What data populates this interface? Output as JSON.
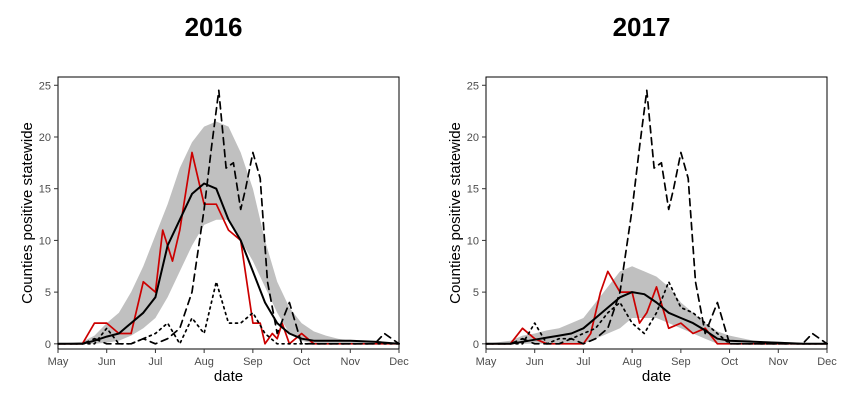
{
  "chart_data": [
    {
      "type": "line",
      "title": "2016",
      "xlabel": "date",
      "ylabel": "Counties positive statewide",
      "x_ticks": [
        "May",
        "Jun",
        "Jul",
        "Aug",
        "Sep",
        "Oct",
        "Nov",
        "Dec"
      ],
      "y_ticks": [
        "0",
        "5",
        "10",
        "15",
        "20",
        "25"
      ],
      "xlim": [
        0,
        7
      ],
      "ylim": [
        -0.5,
        25.8
      ],
      "grid": false,
      "band": {
        "color": "#c0c0c0",
        "x": [
          0,
          0.5,
          0.75,
          1,
          1.25,
          1.5,
          1.75,
          2,
          2.25,
          2.5,
          2.75,
          3,
          3.25,
          3.5,
          3.75,
          4,
          4.25,
          4.5,
          4.75,
          5,
          5.25,
          5.5,
          5.75,
          6,
          6.5,
          7
        ],
        "lower": [
          0,
          0,
          0,
          0.1,
          0.3,
          0.8,
          1.5,
          2.5,
          4.5,
          7,
          9.5,
          11.5,
          12,
          12,
          10,
          8,
          5.5,
          3,
          1,
          0.3,
          0,
          0,
          0,
          0,
          0,
          0
        ],
        "upper": [
          0,
          0.2,
          0.8,
          2,
          3,
          5,
          7.5,
          10.5,
          13.5,
          17,
          19.5,
          21,
          21.5,
          21,
          18.5,
          15,
          10,
          6,
          3.5,
          2,
          1.2,
          0.8,
          0.5,
          0.3,
          0.2,
          0
        ]
      },
      "series": [
        {
          "color": "#cc0000",
          "dash": "solid",
          "x": [
            0,
            0.25,
            0.5,
            0.75,
            1,
            1.25,
            1.5,
            1.75,
            2,
            2.15,
            2.35,
            2.5,
            2.75,
            3,
            3.15,
            3.25,
            3.5,
            3.75,
            4,
            4.15,
            4.25,
            4.4,
            4.5,
            4.6,
            4.75,
            5,
            5.25,
            5.5,
            6,
            6.5,
            7
          ],
          "y": [
            0,
            0,
            0,
            2,
            2,
            1,
            1,
            6,
            5,
            11,
            8,
            11,
            18.5,
            13.5,
            13.5,
            13.5,
            11,
            10,
            2,
            2,
            0,
            1,
            0.5,
            2,
            0,
            1,
            0,
            0,
            0,
            0,
            0
          ]
        },
        {
          "color": "#000000",
          "dash": "solid",
          "width": 2,
          "x": [
            0,
            0.5,
            0.75,
            1,
            1.25,
            1.5,
            1.75,
            2,
            2.25,
            2.5,
            2.75,
            3,
            3.25,
            3.5,
            3.75,
            4,
            4.25,
            4.5,
            4.75,
            5,
            5.25,
            5.5,
            6,
            6.5,
            7
          ],
          "y": [
            0,
            0,
            0.3,
            0.7,
            1,
            2,
            3,
            4.5,
            9.5,
            12,
            14.5,
            15.5,
            15,
            12,
            10,
            7,
            4,
            2,
            1,
            0.5,
            0.3,
            0.3,
            0.3,
            0.2,
            0
          ]
        },
        {
          "color": "#000000",
          "dash": "7,5",
          "x": [
            0,
            0.5,
            0.75,
            1,
            1.25,
            1.5,
            1.75,
            2,
            2.25,
            2.5,
            2.75,
            3,
            3.15,
            3.3,
            3.45,
            3.6,
            3.75,
            3.85,
            4,
            4.15,
            4.3,
            4.5,
            4.75,
            5,
            5.5,
            6,
            6.5,
            6.7,
            7
          ],
          "y": [
            0,
            0,
            0.5,
            0,
            0,
            0,
            0.5,
            0,
            0.5,
            1.5,
            5,
            13,
            19,
            24.5,
            17,
            17.5,
            13,
            15,
            18.5,
            16,
            6,
            1,
            4,
            0,
            0,
            0,
            0,
            1,
            0
          ]
        },
        {
          "color": "#000000",
          "dash": "2,4",
          "x": [
            0,
            0.5,
            0.75,
            1,
            1.25,
            1.5,
            1.75,
            2,
            2.25,
            2.5,
            2.75,
            3,
            3.25,
            3.5,
            3.75,
            4,
            4.25,
            4.5,
            4.75,
            5,
            5.5,
            6,
            6.5,
            7
          ],
          "y": [
            0,
            0,
            0,
            1.5,
            0,
            0,
            0.5,
            1,
            2,
            0,
            2.5,
            1,
            6,
            2,
            2,
            3,
            1,
            0,
            0,
            0,
            0,
            0,
            0,
            0
          ]
        }
      ]
    },
    {
      "type": "line",
      "title": "2017",
      "xlabel": "date",
      "ylabel": "Counties positive statewide",
      "x_ticks": [
        "May",
        "Jun",
        "Jul",
        "Aug",
        "Sep",
        "Oct",
        "Nov",
        "Dec"
      ],
      "y_ticks": [
        "0",
        "5",
        "10",
        "15",
        "20",
        "25"
      ],
      "xlim": [
        0,
        7
      ],
      "ylim": [
        -0.5,
        25.8
      ],
      "grid": false,
      "band": {
        "color": "#c0c0c0",
        "x": [
          0,
          0.5,
          0.75,
          1,
          1.25,
          1.5,
          1.75,
          2,
          2.25,
          2.5,
          2.75,
          3,
          3.25,
          3.5,
          3.75,
          4,
          4.25,
          4.5,
          4.75,
          5,
          5.5,
          6,
          6.5,
          7
        ],
        "lower": [
          0,
          0,
          0,
          0,
          0,
          0,
          0,
          0,
          0.5,
          1,
          1.5,
          2.5,
          2.5,
          2.5,
          2,
          1.5,
          1,
          0.5,
          0,
          0,
          0,
          0,
          0,
          0
        ],
        "upper": [
          0,
          0.3,
          0.8,
          1,
          1.3,
          1.5,
          2,
          2.5,
          4,
          5.5,
          7,
          7.5,
          7,
          6.5,
          5.5,
          4,
          3,
          2,
          1.2,
          0.8,
          0.3,
          0.2,
          0.1,
          0
        ]
      },
      "series": [
        {
          "color": "#cc0000",
          "dash": "solid",
          "x": [
            0,
            0.25,
            0.5,
            0.75,
            1,
            1.25,
            1.5,
            1.75,
            2,
            2.15,
            2.35,
            2.5,
            2.75,
            3,
            3.15,
            3.3,
            3.5,
            3.75,
            4,
            4.25,
            4.5,
            4.75,
            5,
            5.5,
            6,
            6.5,
            7
          ],
          "y": [
            0,
            0,
            0,
            1.5,
            0.5,
            0,
            0,
            0,
            0,
            1,
            5,
            7,
            5,
            5,
            2,
            3,
            5.5,
            1.5,
            2,
            1,
            1.5,
            0,
            0,
            0,
            0,
            0,
            0
          ]
        },
        {
          "color": "#000000",
          "dash": "solid",
          "width": 2,
          "x": [
            0,
            0.5,
            0.75,
            1,
            1.25,
            1.5,
            1.75,
            2,
            2.25,
            2.5,
            2.75,
            3,
            3.25,
            3.5,
            3.75,
            4,
            4.25,
            4.5,
            4.75,
            5,
            5.5,
            6,
            6.5,
            7
          ],
          "y": [
            0,
            0,
            0.2,
            0.4,
            0.6,
            0.8,
            1,
            1.5,
            2.5,
            3.5,
            4.5,
            5,
            4.8,
            4,
            3,
            2.5,
            2,
            1.3,
            0.5,
            0.3,
            0.2,
            0.1,
            0,
            0
          ]
        },
        {
          "color": "#000000",
          "dash": "7,5",
          "x": [
            0,
            0.5,
            0.75,
            1,
            1.25,
            1.5,
            1.75,
            2,
            2.25,
            2.5,
            2.75,
            3,
            3.15,
            3.3,
            3.45,
            3.6,
            3.75,
            3.85,
            4,
            4.15,
            4.3,
            4.5,
            4.75,
            5,
            5.5,
            6,
            6.5,
            6.7,
            7
          ],
          "y": [
            0,
            0,
            0.5,
            0,
            0,
            0,
            0.5,
            0,
            0.5,
            1.5,
            5,
            13,
            19,
            24.5,
            17,
            17.5,
            13,
            15,
            18.5,
            16,
            6,
            1,
            4,
            0,
            0,
            0,
            0,
            1,
            0
          ]
        },
        {
          "color": "#000000",
          "dash": "2,4",
          "x": [
            0,
            0.5,
            0.75,
            1,
            1.25,
            1.5,
            1.75,
            2,
            2.25,
            2.5,
            2.75,
            3,
            3.25,
            3.5,
            3.75,
            4,
            4.25,
            4.5,
            4.75,
            5,
            5.5,
            6,
            6.5,
            7
          ],
          "y": [
            0,
            0,
            0,
            2,
            0,
            0.5,
            0.5,
            1,
            1.5,
            3,
            4,
            2,
            1,
            3,
            6,
            3.5,
            3,
            2,
            1,
            0,
            0,
            0,
            0,
            0
          ]
        }
      ]
    }
  ]
}
